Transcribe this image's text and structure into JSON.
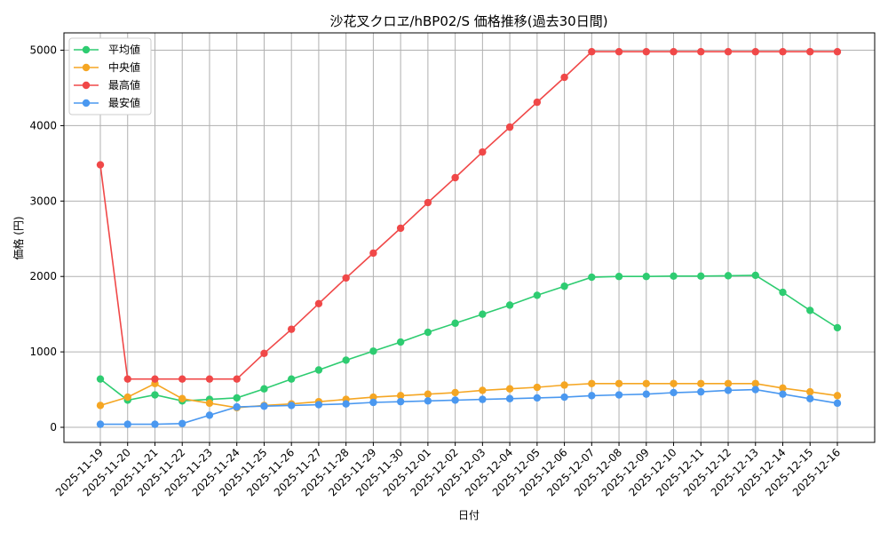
{
  "chart_data": {
    "type": "line",
    "title": "沙花叉クロヱ/hBP02/S 価格推移(過去30日間)",
    "xlabel": "日付",
    "ylabel": "価格 (円)",
    "ylim": [
      -200,
      5230
    ],
    "yticks": [
      0,
      1000,
      2000,
      3000,
      4000,
      5000
    ],
    "ytick_labels": [
      "0",
      "1000",
      "2000",
      "3000",
      "4000",
      "5000"
    ],
    "grid": true,
    "legend_position": "top-left",
    "categories": [
      "2025-11-19",
      "2025-11-20",
      "2025-11-21",
      "2025-11-22",
      "2025-11-23",
      "2025-11-24",
      "2025-11-25",
      "2025-11-26",
      "2025-11-27",
      "2025-11-28",
      "2025-11-29",
      "2025-11-30",
      "2025-12-01",
      "2025-12-02",
      "2025-12-03",
      "2025-12-04",
      "2025-12-05",
      "2025-12-06",
      "2025-12-07",
      "2025-12-08",
      "2025-12-09",
      "2025-12-10",
      "2025-12-11",
      "2025-12-12",
      "2025-12-13",
      "2025-12-14",
      "2025-12-15",
      "2025-12-16"
    ],
    "series": [
      {
        "name": "平均値",
        "color": "#2ecc71",
        "values": [
          640,
          360,
          430,
          350,
          370,
          390,
          510,
          640,
          760,
          890,
          1010,
          1130,
          1260,
          1380,
          1500,
          1620,
          1750,
          1870,
          1990,
          2000,
          2000,
          2005,
          2005,
          2010,
          2015,
          1790,
          1550,
          1320
        ]
      },
      {
        "name": "中央値",
        "color": "#f5a623",
        "values": [
          290,
          400,
          580,
          380,
          320,
          260,
          290,
          310,
          340,
          370,
          400,
          420,
          440,
          460,
          490,
          510,
          530,
          560,
          580,
          580,
          580,
          580,
          580,
          580,
          580,
          520,
          470,
          420
        ]
      },
      {
        "name": "最高値",
        "color": "#f04848",
        "values": [
          3480,
          640,
          640,
          640,
          640,
          640,
          980,
          1300,
          1640,
          1980,
          2310,
          2640,
          2980,
          3310,
          3650,
          3980,
          4310,
          4640,
          4980,
          4980,
          4980,
          4980,
          4980,
          4980,
          4980,
          4980,
          4980,
          4980
        ]
      },
      {
        "name": "最安値",
        "color": "#4a98f0",
        "values": [
          40,
          40,
          40,
          50,
          160,
          270,
          280,
          290,
          300,
          310,
          330,
          340,
          350,
          360,
          370,
          380,
          390,
          400,
          420,
          430,
          440,
          460,
          470,
          490,
          500,
          440,
          380,
          320
        ]
      }
    ]
  }
}
